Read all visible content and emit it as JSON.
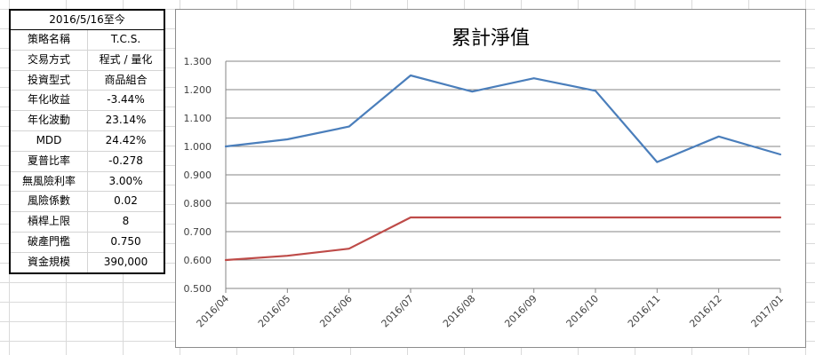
{
  "table": {
    "header": "2016/5/16至今",
    "rows": [
      {
        "label": "策略名稱",
        "value": "T.C.S."
      },
      {
        "label": "交易方式",
        "value": "程式 / 量化"
      },
      {
        "label": "投資型式",
        "value": "商品組合"
      },
      {
        "label": "年化收益",
        "value": "-3.44%"
      },
      {
        "label": "年化波動",
        "value": "23.14%"
      },
      {
        "label": "MDD",
        "value": "24.42%"
      },
      {
        "label": "夏普比率",
        "value": "-0.278"
      },
      {
        "label": "無風險利率",
        "value": "3.00%"
      },
      {
        "label": "風險係數",
        "value": "0.02"
      },
      {
        "label": "槓桿上限",
        "value": "8"
      },
      {
        "label": "破產門檻",
        "value": "0.750"
      },
      {
        "label": "資金規模",
        "value": "390,000"
      }
    ]
  },
  "chart_data": {
    "type": "line",
    "title": "累計淨值",
    "categories": [
      "2016/04",
      "2016/05",
      "2016/06",
      "2016/07",
      "2016/08",
      "2016/09",
      "2016/10",
      "2016/11",
      "2016/12",
      "2017/01"
    ],
    "series": [
      {
        "color": "#4a7ebb",
        "values": [
          1.0,
          1.025,
          1.07,
          1.25,
          1.193,
          1.24,
          1.196,
          0.945,
          1.035,
          0.972
        ]
      },
      {
        "color": "#be4b48",
        "values": [
          0.6,
          0.615,
          0.64,
          0.75,
          0.75,
          0.75,
          0.75,
          0.75,
          0.75,
          0.75
        ]
      }
    ],
    "ylim": [
      0.5,
      1.3
    ],
    "yticks": [
      "0.500",
      "0.600",
      "0.700",
      "0.800",
      "0.900",
      "1.000",
      "1.100",
      "1.200",
      "1.300"
    ],
    "grid": true,
    "legend": "none"
  }
}
